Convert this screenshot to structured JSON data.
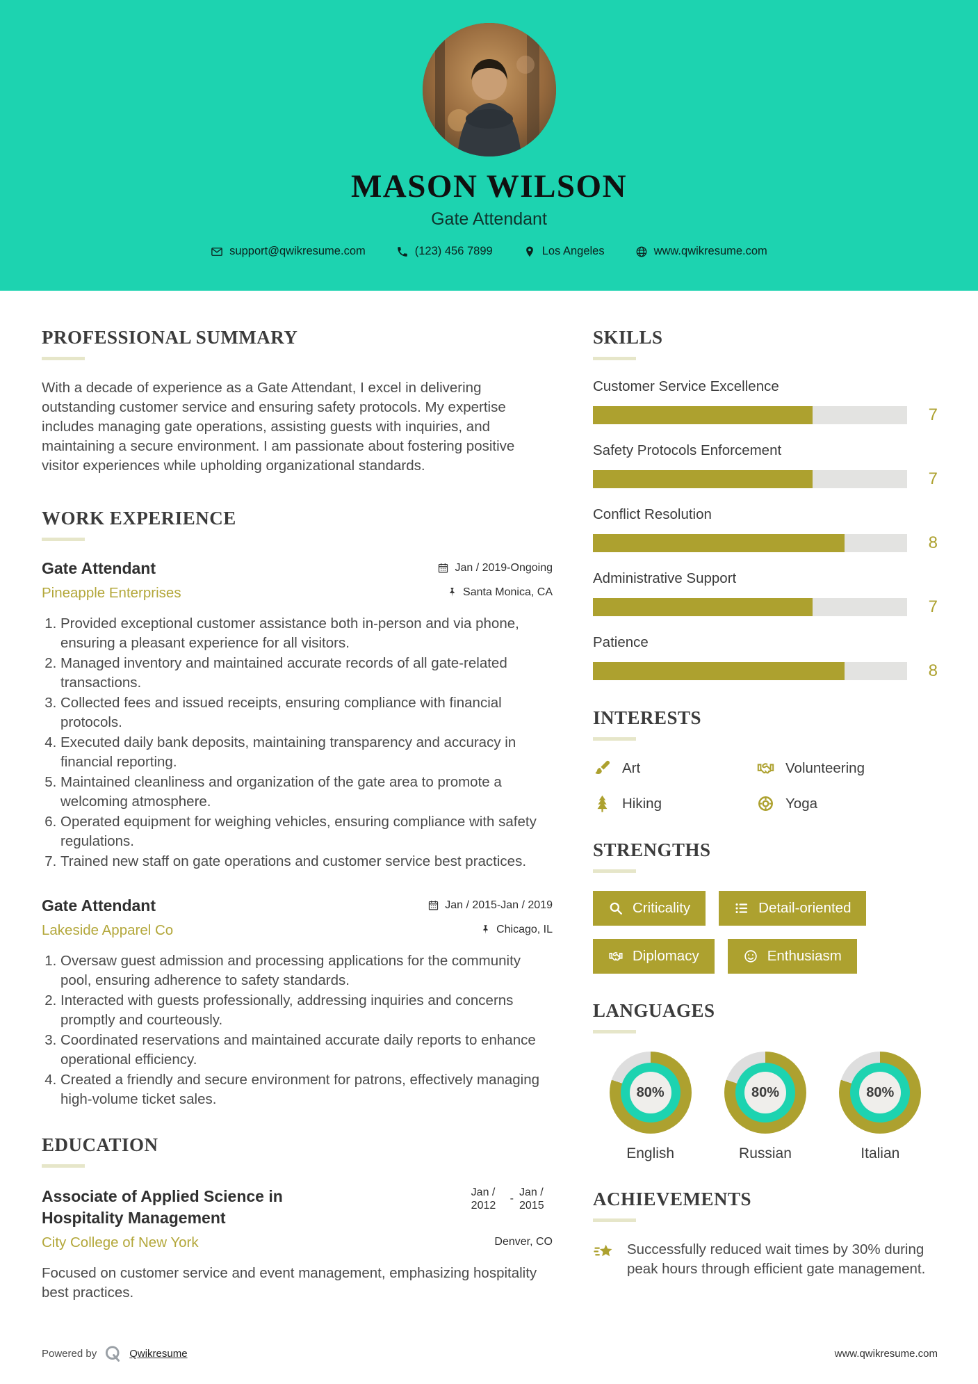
{
  "header": {
    "name": "MASON WILSON",
    "title": "Gate Attendant",
    "contacts": [
      {
        "icon": "mail",
        "text": "support@qwikresume.com"
      },
      {
        "icon": "phone",
        "text": "(123) 456 7899"
      },
      {
        "icon": "pin",
        "text": "Los Angeles"
      },
      {
        "icon": "globe",
        "text": "www.qwikresume.com"
      }
    ]
  },
  "left": {
    "summary": {
      "heading": "PROFESSIONAL SUMMARY",
      "text": "With a decade of experience as a Gate Attendant, I excel in delivering outstanding customer service and ensuring safety protocols. My expertise includes managing gate operations, assisting guests with inquiries, and maintaining a secure environment. I am passionate about fostering positive visitor experiences while upholding organizational standards."
    },
    "work": {
      "heading": "WORK EXPERIENCE",
      "jobs": [
        {
          "title": "Gate Attendant",
          "company": "Pineapple Enterprises",
          "date": "Jan / 2019-Ongoing",
          "location": "Santa Monica, CA",
          "bullets": [
            "Provided exceptional customer assistance both in-person and via phone, ensuring a pleasant experience for all visitors.",
            "Managed inventory and maintained accurate records of all gate-related transactions.",
            "Collected fees and issued receipts, ensuring compliance with financial protocols.",
            "Executed daily bank deposits, maintaining transparency and accuracy in financial reporting.",
            "Maintained cleanliness and organization of the gate area to promote a welcoming atmosphere.",
            "Operated equipment for weighing vehicles, ensuring compliance with safety regulations.",
            "Trained new staff on gate operations and customer service best practices."
          ]
        },
        {
          "title": "Gate Attendant",
          "company": "Lakeside Apparel Co",
          "date": "Jan / 2015-Jan / 2019",
          "location": "Chicago, IL",
          "bullets": [
            "Oversaw guest admission and processing applications for the community pool, ensuring adherence to safety standards.",
            "Interacted with guests professionally, addressing inquiries and concerns promptly and courteously.",
            "Coordinated reservations and maintained accurate daily reports to enhance operational efficiency.",
            "Created a friendly and secure environment for patrons, effectively managing high-volume ticket sales."
          ]
        }
      ]
    },
    "education": {
      "heading": "EDUCATION",
      "degree": "Associate of Applied Science in Hospitality Management",
      "school": "City College of New York",
      "date_start": "Jan / 2012",
      "date_dash": "-",
      "date_end": "Jan / 2015",
      "location": "Denver, CO",
      "description": "Focused on customer service and event management, emphasizing hospitality best practices."
    }
  },
  "right": {
    "skills": {
      "heading": "SKILLS",
      "max": 10,
      "items": [
        {
          "label": "Customer Service Excellence",
          "value": 7
        },
        {
          "label": "Safety Protocols Enforcement",
          "value": 7
        },
        {
          "label": "Conflict Resolution",
          "value": 8
        },
        {
          "label": "Administrative Support",
          "value": 7
        },
        {
          "label": "Patience",
          "value": 8
        }
      ]
    },
    "interests": {
      "heading": "INTERESTS",
      "items": [
        {
          "icon": "paintbrush",
          "label": "Art"
        },
        {
          "icon": "handshake",
          "label": "Volunteering"
        },
        {
          "icon": "tree",
          "label": "Hiking"
        },
        {
          "icon": "lifebuoy",
          "label": "Yoga"
        }
      ]
    },
    "strengths": {
      "heading": "STRENGTHS",
      "items": [
        {
          "icon": "magnifier",
          "label": "Criticality"
        },
        {
          "icon": "list",
          "label": "Detail-oriented"
        },
        {
          "icon": "handshake",
          "label": "Diplomacy"
        },
        {
          "icon": "smiley",
          "label": "Enthusiasm"
        }
      ]
    },
    "languages": {
      "heading": "LANGUAGES",
      "items": [
        {
          "label": "English",
          "percent": 80,
          "percent_label": "80%"
        },
        {
          "label": "Russian",
          "percent": 80,
          "percent_label": "80%"
        },
        {
          "label": "Italian",
          "percent": 80,
          "percent_label": "80%"
        }
      ]
    },
    "achievements": {
      "heading": "ACHIEVEMENTS",
      "items": [
        {
          "icon": "star",
          "text": "Successfully reduced wait times by 30% during peak hours through efficient gate management."
        }
      ]
    }
  },
  "footer": {
    "powered_by": "Powered by",
    "brand": "Qwikresume",
    "website": "www.qwikresume.com"
  },
  "colors": {
    "teal": "#1dd3b0",
    "olive": "#ada12f",
    "olive_light": "#b3a73a",
    "track": "#e3e3e1",
    "rule": "#e6e6c9",
    "heading": "#3b3b3b",
    "body": "#4a4a4a",
    "donut_center": "#efeeeb",
    "donut_rest": "#dedede"
  }
}
